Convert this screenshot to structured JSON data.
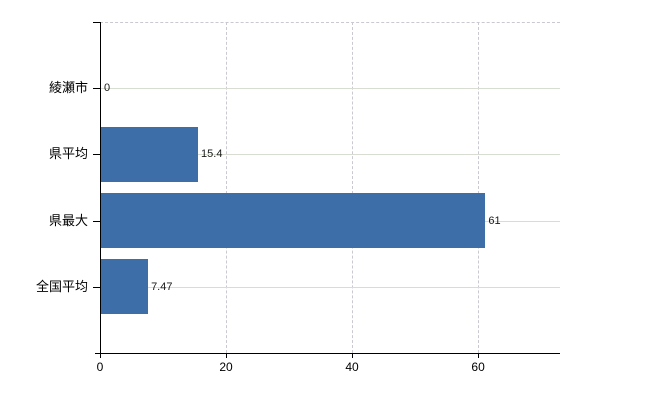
{
  "chart_data": {
    "type": "bar",
    "orientation": "horizontal",
    "title": "",
    "xlabel": "",
    "ylabel": "",
    "categories": [
      "綾瀬市",
      "県平均",
      "県最大",
      "全国平均"
    ],
    "values": [
      0,
      15.4,
      61,
      7.47
    ],
    "data_labels": [
      "0",
      "15.4",
      "61",
      "7.47"
    ],
    "x_ticks": [
      0,
      20,
      40,
      60
    ],
    "x_tick_labels": [
      "0",
      "20",
      "40",
      "60"
    ],
    "xlim": [
      0,
      73
    ],
    "grid": true,
    "legend": false,
    "bar_color": "#3d6ea7",
    "gridline_color_horizontal": "#d8ddd2",
    "gridline_color_vertical": "#c9c9d1",
    "axis_color": "#000000",
    "background_color": "#ffffff"
  }
}
